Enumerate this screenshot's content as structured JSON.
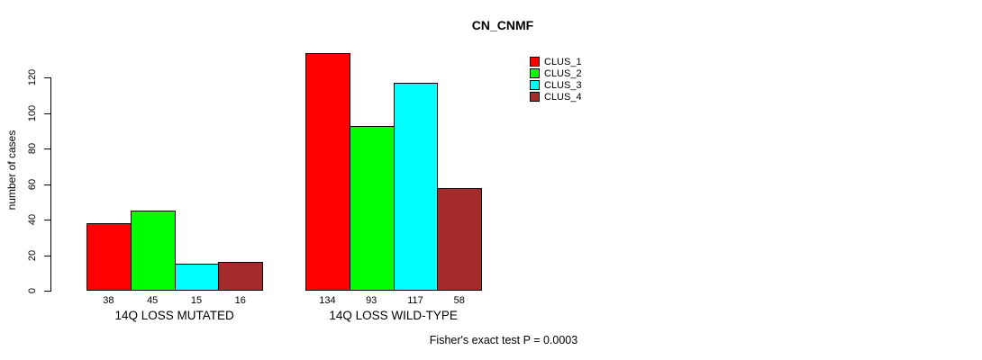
{
  "chart_data": {
    "type": "bar",
    "title": "CN_CNMF",
    "xlabel": "",
    "ylabel": "number of cases",
    "annotation": "Fisher's exact test P = 0.0003",
    "categories": [
      "14Q LOSS MUTATED",
      "14Q LOSS WILD-TYPE"
    ],
    "series": [
      {
        "name": "CLUS_1",
        "color": "#FF0000",
        "values": [
          38,
          134
        ]
      },
      {
        "name": "CLUS_2",
        "color": "#00FF00",
        "values": [
          45,
          93
        ]
      },
      {
        "name": "CLUS_3",
        "color": "#00FFFF",
        "values": [
          15,
          117
        ]
      },
      {
        "name": "CLUS_4",
        "color": "#A52A2A",
        "values": [
          16,
          58
        ]
      }
    ],
    "bar_labels": [
      [
        38,
        45,
        15,
        16
      ],
      [
        134,
        93,
        117,
        58
      ]
    ],
    "yticks": [
      0,
      20,
      40,
      60,
      80,
      100,
      120
    ],
    "ylim": [
      0,
      140
    ],
    "grid": false,
    "legend_position": "top-right",
    "legend": [
      {
        "label": "CLUS_1",
        "color": "#FF0000"
      },
      {
        "label": "CLUS_2",
        "color": "#00FF00"
      },
      {
        "label": "CLUS_3",
        "color": "#00FFFF"
      },
      {
        "label": "CLUS_4",
        "color": "#A52A2A"
      }
    ],
    "colors": {
      "background": "#FFFFFF",
      "axis": "#000000",
      "bar_border": "#000000",
      "text": "#000000"
    }
  }
}
